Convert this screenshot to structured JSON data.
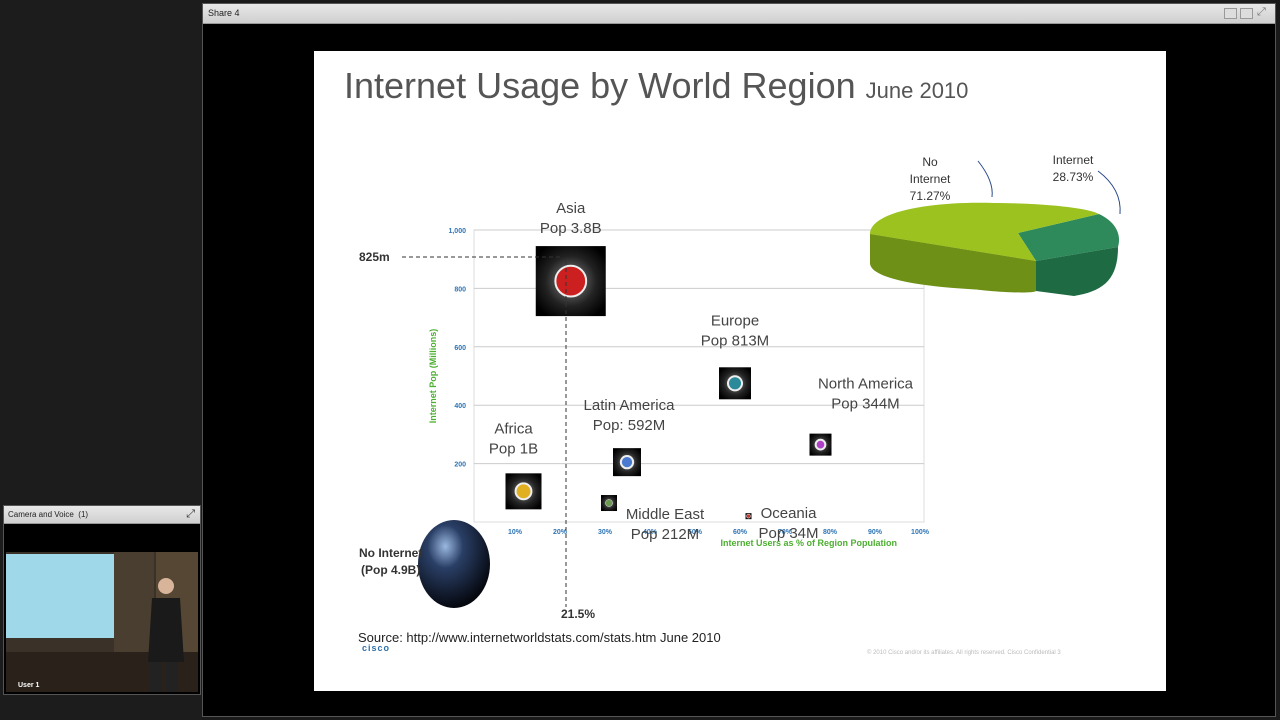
{
  "share": {
    "title": "Share 4"
  },
  "camera": {
    "title": "Camera and Voice",
    "count": "(1)",
    "user_label": "User 1"
  },
  "slide": {
    "title": "Internet Usage by World Region",
    "subtitle": "June 2010",
    "source": "Source: http://www.internetworldstats.com/stats.htm  June 2010",
    "logo_text": "cisco",
    "copyright": "© 2010 Cisco and/or its affiliates. All rights reserved.   Cisco Confidential        3"
  },
  "chart_data": [
    {
      "type": "scatter",
      "xlabel": "Internet Users as % of  Region Population",
      "ylabel": "Internet Pop (Millions)",
      "x_ticks": [
        "10%",
        "20%",
        "30%",
        "40%",
        "50%",
        "60%",
        "70%",
        "80%",
        "90%",
        "100%"
      ],
      "y_ticks": [
        "200",
        "400",
        "600",
        "800",
        "1,000"
      ],
      "xlim": [
        0,
        100
      ],
      "ylim": [
        0,
        1000
      ],
      "grid": true,
      "points": [
        {
          "name": "Asia",
          "label": "Pop 3.8B",
          "x": 21.5,
          "y": 825,
          "color": "#cc1f1f"
        },
        {
          "name": "Europe",
          "label": "Pop 813M",
          "x": 58,
          "y": 475,
          "color": "#2a8a9a"
        },
        {
          "name": "North America",
          "label": "Pop 344M",
          "x": 77,
          "y": 265,
          "color": "#b040c8"
        },
        {
          "name": "Latin America",
          "label": "Pop: 592M",
          "x": 34,
          "y": 205,
          "color": "#4a7ad0"
        },
        {
          "name": "Africa",
          "label": "Pop 1B",
          "x": 11,
          "y": 105,
          "color": "#e0b020"
        },
        {
          "name": "Middle East",
          "label": "Pop 212M",
          "x": 30,
          "y": 65,
          "color": "#6a9a50"
        },
        {
          "name": "Oceania",
          "label": "Pop 34M",
          "x": 61,
          "y": 20,
          "color": "#d0302a"
        }
      ],
      "annotations": {
        "asia_y": "825m",
        "asia_x": "21.5%",
        "no_internet_line1": "No Internet",
        "no_internet_line2": "(Pop 4.9B)"
      }
    },
    {
      "type": "pie",
      "slices": [
        {
          "label_line1": "No",
          "label_line2": "Internet",
          "value_text": "71.27%",
          "value": 71.27,
          "color": "#9cc220"
        },
        {
          "label_line1": "Internet",
          "label_line2": "",
          "value_text": "28.73%",
          "value": 28.73,
          "color": "#2e8a5a"
        }
      ]
    }
  ]
}
